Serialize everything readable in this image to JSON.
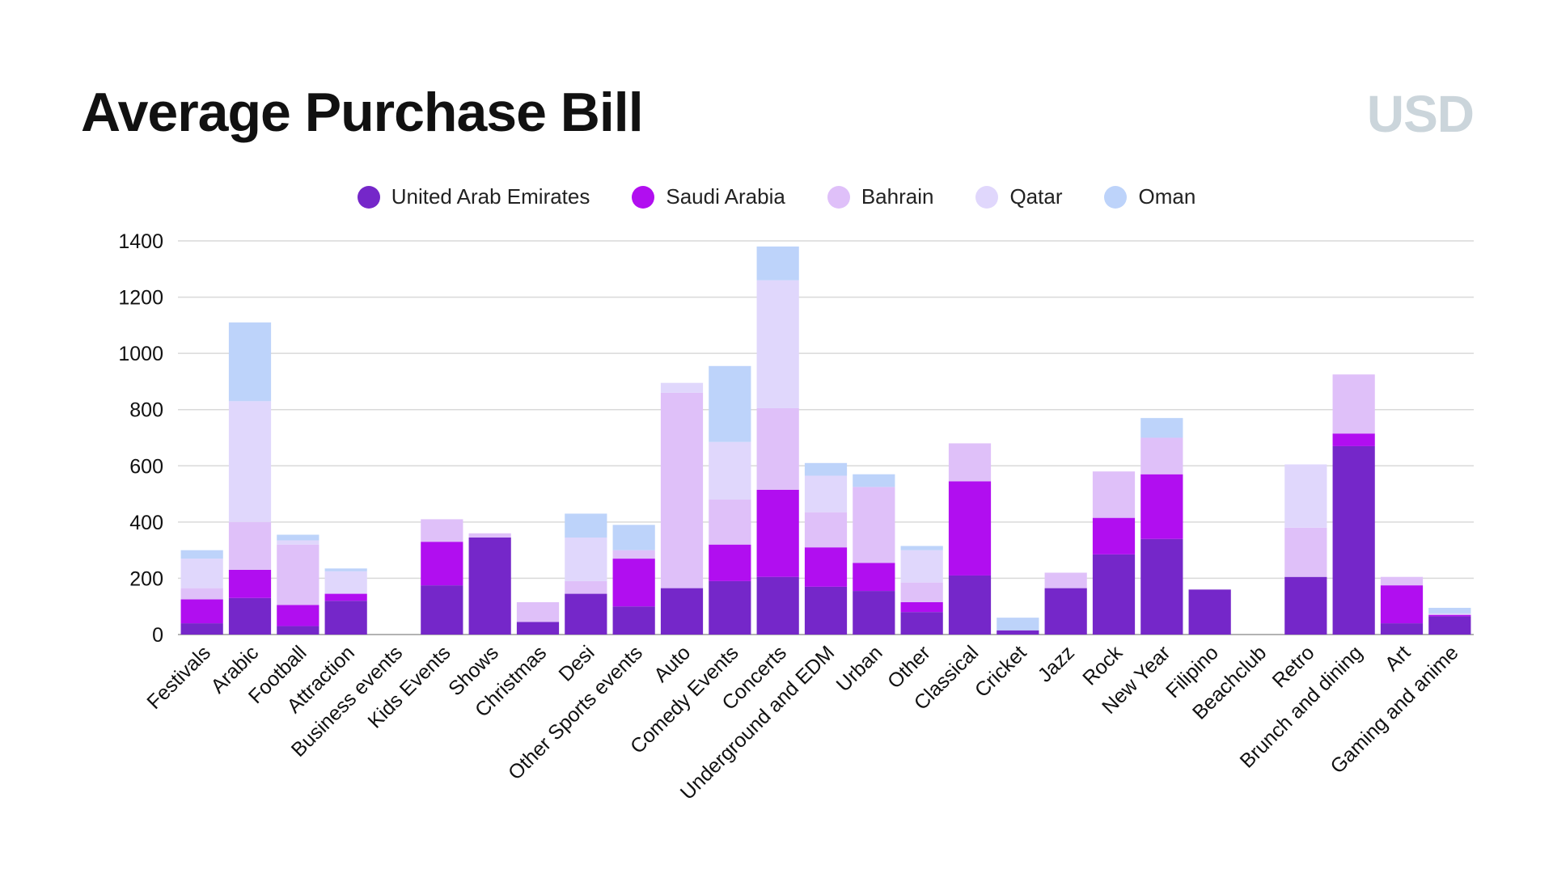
{
  "header": {
    "title": "Average Purchase Bill",
    "unit": "USD"
  },
  "colors": {
    "United Arab Emirates": "#7527c9",
    "Saudi Arabia": "#b10ef0",
    "Bahrain": "#dfc0f9",
    "Qatar": "#e0d7fc",
    "Oman": "#bdd3fa"
  },
  "chart_data": {
    "type": "bar",
    "stacked": true,
    "title": "Average Purchase Bill",
    "unit": "USD",
    "xlabel": "",
    "ylabel": "",
    "ylim": [
      0,
      1400
    ],
    "yticks": [
      0,
      200,
      400,
      600,
      800,
      1000,
      1200,
      1400
    ],
    "grid": true,
    "legend_position": "top",
    "categories": [
      "Festivals",
      "Arabic",
      "Football",
      "Attraction",
      "Business events",
      "Kids Events",
      "Shows",
      "Christmas",
      "Desi",
      "Other Sports events",
      "Auto",
      "Comedy Events",
      "Concerts",
      "Underground and EDM",
      "Urban",
      "Other",
      "Classical",
      "Cricket",
      "Jazz",
      "Rock",
      "New Year",
      "Filipino",
      "Beachclub",
      "Retro",
      "Brunch and dining",
      "Art",
      "Gaming and anime"
    ],
    "series": [
      {
        "name": "United Arab Emirates",
        "values": [
          40,
          130,
          30,
          120,
          0,
          175,
          345,
          45,
          145,
          100,
          165,
          190,
          205,
          170,
          155,
          80,
          210,
          15,
          165,
          285,
          340,
          160,
          0,
          205,
          670,
          40,
          65
        ]
      },
      {
        "name": "Saudi Arabia",
        "values": [
          85,
          100,
          75,
          25,
          0,
          155,
          0,
          0,
          0,
          170,
          0,
          130,
          310,
          140,
          100,
          35,
          335,
          0,
          0,
          130,
          230,
          0,
          0,
          0,
          45,
          135,
          5
        ]
      },
      {
        "name": "Bahrain",
        "values": [
          40,
          170,
          215,
          0,
          0,
          80,
          15,
          70,
          45,
          30,
          695,
          160,
          290,
          125,
          270,
          70,
          135,
          0,
          55,
          165,
          130,
          0,
          0,
          175,
          210,
          30,
          0
        ]
      },
      {
        "name": "Qatar",
        "values": [
          105,
          430,
          15,
          80,
          0,
          0,
          0,
          0,
          155,
          0,
          35,
          205,
          455,
          130,
          0,
          115,
          0,
          0,
          0,
          0,
          0,
          0,
          0,
          225,
          0,
          0,
          5
        ]
      },
      {
        "name": "Oman",
        "values": [
          30,
          280,
          20,
          10,
          0,
          0,
          0,
          0,
          85,
          90,
          0,
          270,
          120,
          45,
          45,
          15,
          0,
          45,
          0,
          0,
          70,
          0,
          0,
          0,
          0,
          0,
          20
        ]
      }
    ]
  }
}
